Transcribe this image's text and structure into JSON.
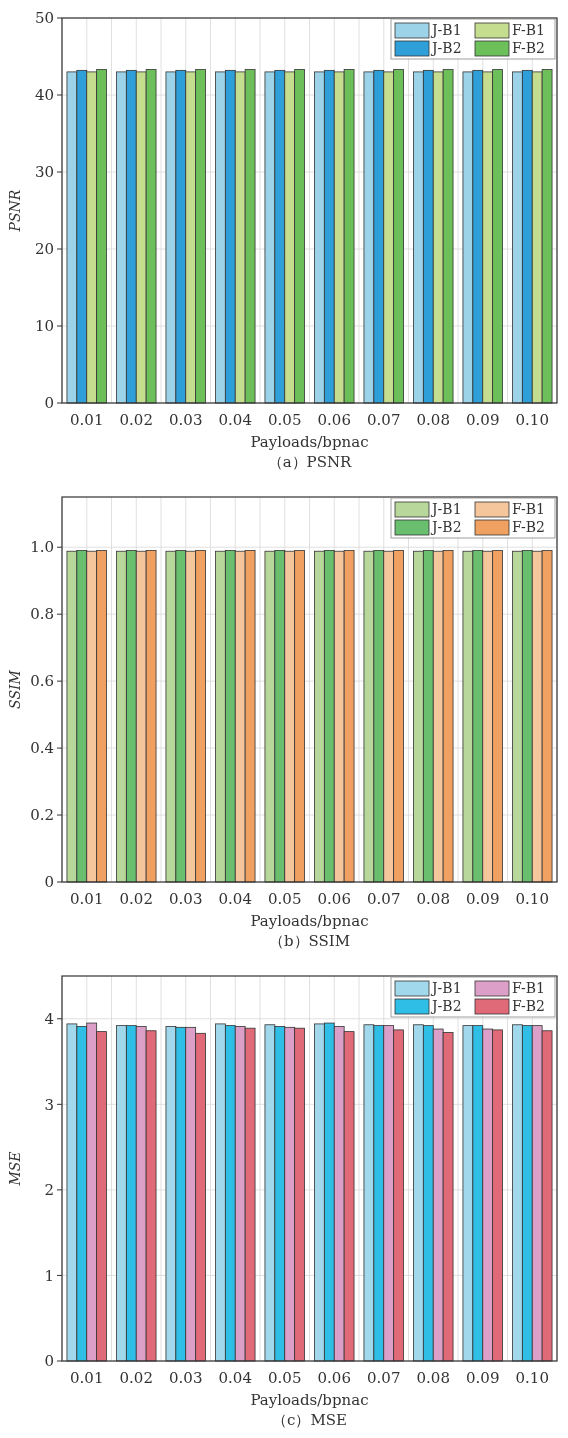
{
  "chart_data": [
    {
      "type": "bar",
      "title": "（a）PSNR",
      "xlabel": "Payloads/bpnac",
      "ylabel": "PSNR",
      "categories": [
        "0.01",
        "0.02",
        "0.03",
        "0.04",
        "0.05",
        "0.06",
        "0.07",
        "0.08",
        "0.09",
        "0.10"
      ],
      "series": [
        {
          "name": "J-B1",
          "color": "#9dd3e8",
          "values": [
            43.0,
            43.0,
            43.0,
            43.0,
            43.0,
            43.0,
            43.0,
            43.0,
            43.0,
            43.0
          ]
        },
        {
          "name": "J-B2",
          "color": "#2e9fd8",
          "values": [
            43.2,
            43.2,
            43.2,
            43.2,
            43.2,
            43.2,
            43.2,
            43.2,
            43.2,
            43.2
          ]
        },
        {
          "name": "F-B1",
          "color": "#c5dd8e",
          "values": [
            43.0,
            43.0,
            43.0,
            43.0,
            43.0,
            43.0,
            43.0,
            43.0,
            43.0,
            43.0
          ]
        },
        {
          "name": "F-B2",
          "color": "#6dbf5a",
          "values": [
            43.3,
            43.3,
            43.3,
            43.3,
            43.3,
            43.3,
            43.3,
            43.3,
            43.3,
            43.3
          ]
        }
      ],
      "ylim": [
        0,
        50
      ],
      "yticks": [
        0,
        10,
        20,
        30,
        40,
        50
      ],
      "grid": true,
      "legend": "top right"
    },
    {
      "type": "bar",
      "title": "（b）SSIM",
      "xlabel": "Payloads/bpnac",
      "ylabel": "SSIM",
      "categories": [
        "0.01",
        "0.02",
        "0.03",
        "0.04",
        "0.05",
        "0.06",
        "0.07",
        "0.08",
        "0.09",
        "0.10"
      ],
      "series": [
        {
          "name": "J-B1",
          "color": "#b7d89a",
          "values": [
            0.988,
            0.988,
            0.988,
            0.988,
            0.988,
            0.988,
            0.988,
            0.988,
            0.988,
            0.988
          ]
        },
        {
          "name": "J-B2",
          "color": "#6abf6e",
          "values": [
            0.99,
            0.99,
            0.99,
            0.99,
            0.99,
            0.99,
            0.99,
            0.99,
            0.99,
            0.99
          ]
        },
        {
          "name": "F-B1",
          "color": "#f5c59c",
          "values": [
            0.988,
            0.988,
            0.988,
            0.988,
            0.988,
            0.988,
            0.988,
            0.988,
            0.988,
            0.988
          ]
        },
        {
          "name": "F-B2",
          "color": "#f0a060",
          "values": [
            0.99,
            0.99,
            0.99,
            0.99,
            0.99,
            0.99,
            0.99,
            0.99,
            0.99,
            0.99
          ]
        }
      ],
      "ylim": [
        0,
        1.15
      ],
      "yticks": [
        0,
        0.2,
        0.4,
        0.6,
        0.8,
        {
          "value": 1,
          "label": "1.0"
        }
      ],
      "grid": true,
      "legend": "top right"
    },
    {
      "type": "bar",
      "title": "（c）MSE",
      "xlabel": "Payloads/bpnac",
      "ylabel": "MSE",
      "categories": [
        "0.01",
        "0.02",
        "0.03",
        "0.04",
        "0.05",
        "0.06",
        "0.07",
        "0.08",
        "0.09",
        "0.10"
      ],
      "series": [
        {
          "name": "J-B1",
          "color": "#a2d8ec",
          "values": [
            3.94,
            3.92,
            3.91,
            3.94,
            3.93,
            3.94,
            3.93,
            3.93,
            3.92,
            3.93
          ]
        },
        {
          "name": "J-B2",
          "color": "#2fbfe6",
          "values": [
            3.91,
            3.92,
            3.9,
            3.92,
            3.91,
            3.95,
            3.92,
            3.92,
            3.92,
            3.92
          ]
        },
        {
          "name": "F-B1",
          "color": "#dca0c8",
          "values": [
            3.95,
            3.91,
            3.9,
            3.91,
            3.9,
            3.91,
            3.92,
            3.88,
            3.88,
            3.92
          ]
        },
        {
          "name": "F-B2",
          "color": "#e06a78",
          "values": [
            3.85,
            3.86,
            3.83,
            3.89,
            3.89,
            3.85,
            3.87,
            3.84,
            3.87,
            3.86
          ]
        }
      ],
      "ylim": [
        0,
        4.5
      ],
      "yticks": [
        0,
        1,
        2,
        3,
        4
      ],
      "grid": true,
      "legend": "top right"
    }
  ]
}
